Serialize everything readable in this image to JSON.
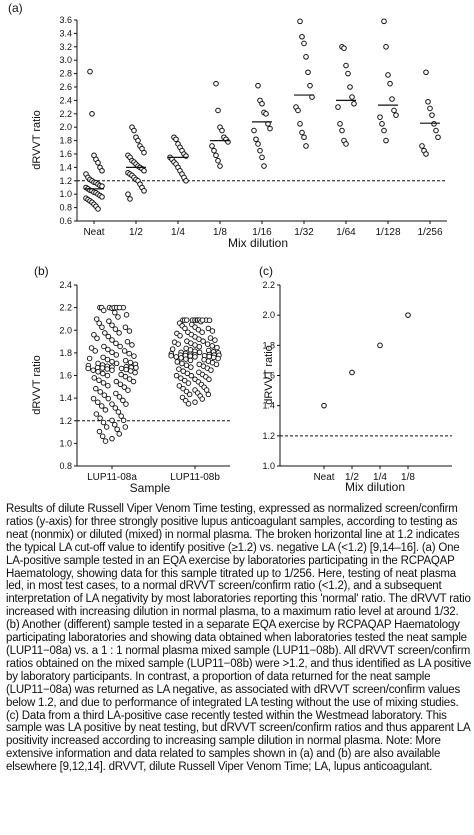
{
  "caption": "Results of dilute Russell Viper Venom Time testing, expressed as normalized screen/confirm ratios (y-axis) for three strongly positive lupus anticoagulant samples, according to testing as neat (nonmix) or diluted (mixed) in normal plasma. The broken horizontal line at 1.2 indicates the typical LA cut-off value to identify positive (≥1.2) vs. negative LA (<1.2) [9,14–16]. (a) One LA-positive sample tested in an EQA exercise by laboratories participating in the RCPAQAP Haematology, showing data for this sample titrated up to 1/256. Here, testing of neat plasma led, in most test cases, to a normal dRVVT screen/confirm ratio (<1.2), and a subsequent interpretation of LA negativity by most laboratories reporting this 'normal' ratio. The dRVVT ratio increased with increasing dilution in normal plasma, to a maximum ratio level at around 1/32. (b) Another (different) sample tested in a separate EQA exercise by RCPAQAP Haematology participating laboratories and showing data obtained when laboratories tested the neat sample (LUP11−08a) vs. a 1 : 1 normal plasma mixed sample (LUP11−08b). All dRVVT screen/confirm ratios obtained on the mixed sample (LUP11−08b) were >1.2, and thus identified as LA positive by laboratory participants. In contrast, a proportion of data returned for the neat sample (LUP11−08a) was returned as LA negative, as associated with dRVVT screen/confirm values below 1.2, and due to performance of integrated LA testing without the use of mixing studies. (c) Data from a third LA-positive case recently tested within the Westmead laboratory. This sample was LA positive by neat testing, but dRVVT screen/confirm ratios and thus apparent LA positivity increased according to increasing sample dilution in normal plasma. Note: More extensive information and data related to samples shown in (a) and (b) are also available elsewhere [9,12,14]. dRVVT, dilute Russell Viper Venom Time; LA, lupus anticoagulant.",
  "chart_data": [
    {
      "panel": "(a)",
      "type": "scatter",
      "ylabel": "dRVVT ratio",
      "xlabel": "Mix dilution",
      "ylim": [
        0.6,
        3.6
      ],
      "yticks": [
        "0.6",
        "0.8",
        "1.0",
        "1.2",
        "1.4",
        "1.6",
        "1.8",
        "2.0",
        "2.2",
        "2.4",
        "2.6",
        "2.8",
        "3.0",
        "3.2",
        "3.4",
        "3.6"
      ],
      "categories": [
        "Neat",
        "1/2",
        "1/4",
        "1/8",
        "1/16",
        "1/32",
        "1/64",
        "1/128",
        "1/256"
      ],
      "cutoff": 1.2,
      "medians": [
        1.08,
        1.4,
        1.55,
        1.8,
        2.08,
        2.48,
        2.4,
        2.33,
        2.06
      ],
      "points": [
        [
          2.83,
          2.2,
          1.58,
          1.52,
          1.47,
          1.4,
          1.35,
          1.3,
          1.25,
          1.22,
          1.2,
          1.18,
          1.17,
          1.15,
          1.13,
          1.12,
          1.1,
          1.08,
          1.06,
          1.05,
          1.03,
          1.02,
          1.0,
          0.98,
          0.96,
          0.94,
          0.92,
          0.9,
          0.88,
          0.85,
          0.82,
          0.78
        ],
        [
          2.0,
          1.95,
          1.85,
          1.8,
          1.72,
          1.68,
          1.62,
          1.58,
          1.55,
          1.5,
          1.48,
          1.45,
          1.42,
          1.4,
          1.38,
          1.35,
          1.32,
          1.3,
          1.28,
          1.25,
          1.22,
          1.2,
          1.15,
          1.1,
          1.05,
          1.0,
          0.93
        ],
        [
          1.85,
          1.82,
          1.75,
          1.7,
          1.65,
          1.6,
          1.57,
          1.55,
          1.52,
          1.48,
          1.45,
          1.4,
          1.35,
          1.3,
          1.25,
          1.2
        ],
        [
          2.65,
          2.25,
          2.0,
          1.95,
          1.85,
          1.82,
          1.78,
          1.72,
          1.65,
          1.58,
          1.5,
          1.42
        ],
        [
          2.62,
          2.4,
          2.35,
          2.22,
          2.2,
          2.05,
          1.98,
          1.95,
          1.82,
          1.75,
          1.65,
          1.55,
          1.42
        ],
        [
          3.58,
          3.35,
          3.25,
          3.05,
          2.82,
          2.62,
          2.45,
          2.3,
          2.25,
          2.05,
          1.92,
          1.85,
          1.72
        ],
        [
          3.2,
          3.18,
          2.92,
          2.8,
          2.6,
          2.45,
          2.35,
          2.3,
          2.05,
          1.95,
          1.8,
          1.75
        ],
        [
          3.58,
          3.2,
          2.78,
          2.65,
          2.42,
          2.25,
          2.18,
          2.15,
          2.05,
          1.95,
          1.8
        ],
        [
          2.82,
          2.38,
          2.28,
          2.18,
          2.05,
          1.95,
          1.85,
          1.72,
          1.65,
          1.6
        ]
      ]
    },
    {
      "panel": "(b)",
      "type": "scatter",
      "ylabel": "dRVVT ratio",
      "xlabel": "Sample",
      "ylim": [
        0.8,
        2.4
      ],
      "yticks": [
        "0.8",
        "1.0",
        "1.2",
        "1.4",
        "1.6",
        "1.8",
        "2.0",
        "2.2",
        "2.4"
      ],
      "categories": [
        "LUP11-08a",
        "LUP11-08b"
      ],
      "cutoff": 1.2,
      "series": [
        {
          "spread_high": 2.2,
          "spread_low": 0.9,
          "count": 110
        },
        {
          "spread_high": 2.09,
          "spread_low": 1.23,
          "count": 110
        }
      ]
    },
    {
      "panel": "(c)",
      "type": "scatter",
      "ylabel": "dRVVT ratio",
      "xlabel": "Mix dilution",
      "ylim": [
        1.0,
        2.2
      ],
      "yticks": [
        "1.0",
        "1.2",
        "1.4",
        "1.6",
        "1.8",
        "2.0",
        "2.2"
      ],
      "categories": [
        "Neat",
        "1/2",
        "1/4",
        "1/8"
      ],
      "cutoff": 1.2,
      "values": [
        1.4,
        1.62,
        1.8,
        2.0
      ]
    }
  ]
}
